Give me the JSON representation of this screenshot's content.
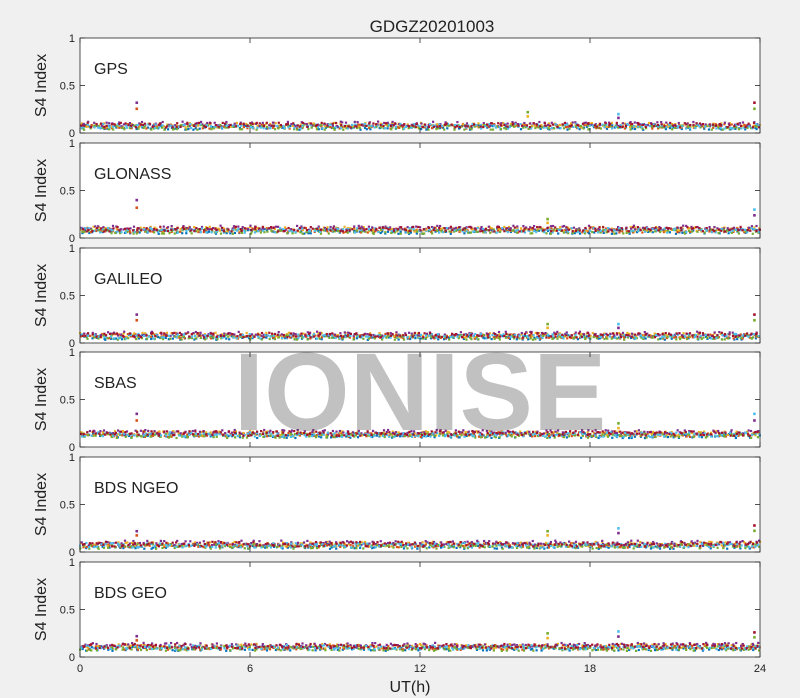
{
  "figure": {
    "title": "GDGZ20201003",
    "watermark": "IONISE",
    "background": "#f0f0f0",
    "axes_background": "#ffffff",
    "series_colors": [
      "#0072BD",
      "#D95319",
      "#EDB120",
      "#7E2F8E",
      "#77AC30",
      "#4DBEEE",
      "#A2142F"
    ]
  },
  "chart_data": [
    {
      "type": "scatter",
      "panel_label": "GPS",
      "ylabel": "S4 Index",
      "xlabel": "",
      "xlim": [
        0,
        24
      ],
      "ylim": [
        0,
        1
      ],
      "x_ticks": [],
      "y_ticks": [
        0,
        0.5,
        1
      ],
      "y_tick_labels": [
        "0",
        "0.5",
        "1"
      ],
      "baseline_s4": 0.07,
      "spikes": [
        {
          "x": 2.0,
          "y": 0.32
        },
        {
          "x": 15.8,
          "y": 0.22
        },
        {
          "x": 19.0,
          "y": 0.2
        },
        {
          "x": 23.8,
          "y": 0.32
        }
      ]
    },
    {
      "type": "scatter",
      "panel_label": "GLONASS",
      "ylabel": "S4 Index",
      "xlabel": "",
      "xlim": [
        0,
        24
      ],
      "ylim": [
        0,
        1
      ],
      "x_ticks": [],
      "y_ticks": [
        0,
        0.5,
        1
      ],
      "y_tick_labels": [
        "0",
        "0.5",
        "1"
      ],
      "baseline_s4": 0.08,
      "spikes": [
        {
          "x": 2.0,
          "y": 0.4
        },
        {
          "x": 16.5,
          "y": 0.2
        },
        {
          "x": 23.8,
          "y": 0.3
        }
      ]
    },
    {
      "type": "scatter",
      "panel_label": "GALILEO",
      "ylabel": "S4 Index",
      "xlabel": "",
      "xlim": [
        0,
        24
      ],
      "ylim": [
        0,
        1
      ],
      "x_ticks": [],
      "y_ticks": [
        0,
        0.5,
        1
      ],
      "y_tick_labels": [
        "0",
        "0.5",
        "1"
      ],
      "baseline_s4": 0.07,
      "spikes": [
        {
          "x": 2.0,
          "y": 0.3
        },
        {
          "x": 16.5,
          "y": 0.2
        },
        {
          "x": 19.0,
          "y": 0.2
        },
        {
          "x": 23.8,
          "y": 0.3
        }
      ]
    },
    {
      "type": "scatter",
      "panel_label": "SBAS",
      "ylabel": "S4 Index",
      "xlabel": "",
      "xlim": [
        0,
        24
      ],
      "ylim": [
        0,
        1
      ],
      "x_ticks": [],
      "y_ticks": [
        0,
        0.5,
        1
      ],
      "y_tick_labels": [
        "0",
        "0.5",
        "1"
      ],
      "baseline_s4": 0.13,
      "spikes": [
        {
          "x": 2.0,
          "y": 0.35
        },
        {
          "x": 19.0,
          "y": 0.25
        },
        {
          "x": 23.8,
          "y": 0.35
        }
      ]
    },
    {
      "type": "scatter",
      "panel_label": "BDS NGEO",
      "ylabel": "S4 Index",
      "xlabel": "",
      "xlim": [
        0,
        24
      ],
      "ylim": [
        0,
        1
      ],
      "x_ticks": [],
      "y_ticks": [
        0,
        0.5,
        1
      ],
      "y_tick_labels": [
        "0",
        "0.5",
        "1"
      ],
      "baseline_s4": 0.07,
      "spikes": [
        {
          "x": 2.0,
          "y": 0.22
        },
        {
          "x": 16.5,
          "y": 0.22
        },
        {
          "x": 19.0,
          "y": 0.25
        },
        {
          "x": 23.8,
          "y": 0.28
        }
      ]
    },
    {
      "type": "scatter",
      "panel_label": "BDS GEO",
      "ylabel": "S4 Index",
      "xlabel": "UT(h)",
      "xlim": [
        0,
        24
      ],
      "ylim": [
        0,
        1
      ],
      "x_ticks": [
        0,
        6,
        12,
        18,
        24
      ],
      "x_tick_labels": [
        "0",
        "6",
        "12",
        "18",
        "24"
      ],
      "y_ticks": [
        0,
        0.5,
        1
      ],
      "y_tick_labels": [
        "0",
        "0.5",
        "1"
      ],
      "baseline_s4": 0.1,
      "spikes": [
        {
          "x": 2.0,
          "y": 0.22
        },
        {
          "x": 16.5,
          "y": 0.25
        },
        {
          "x": 19.0,
          "y": 0.27
        },
        {
          "x": 23.8,
          "y": 0.26
        }
      ]
    }
  ]
}
